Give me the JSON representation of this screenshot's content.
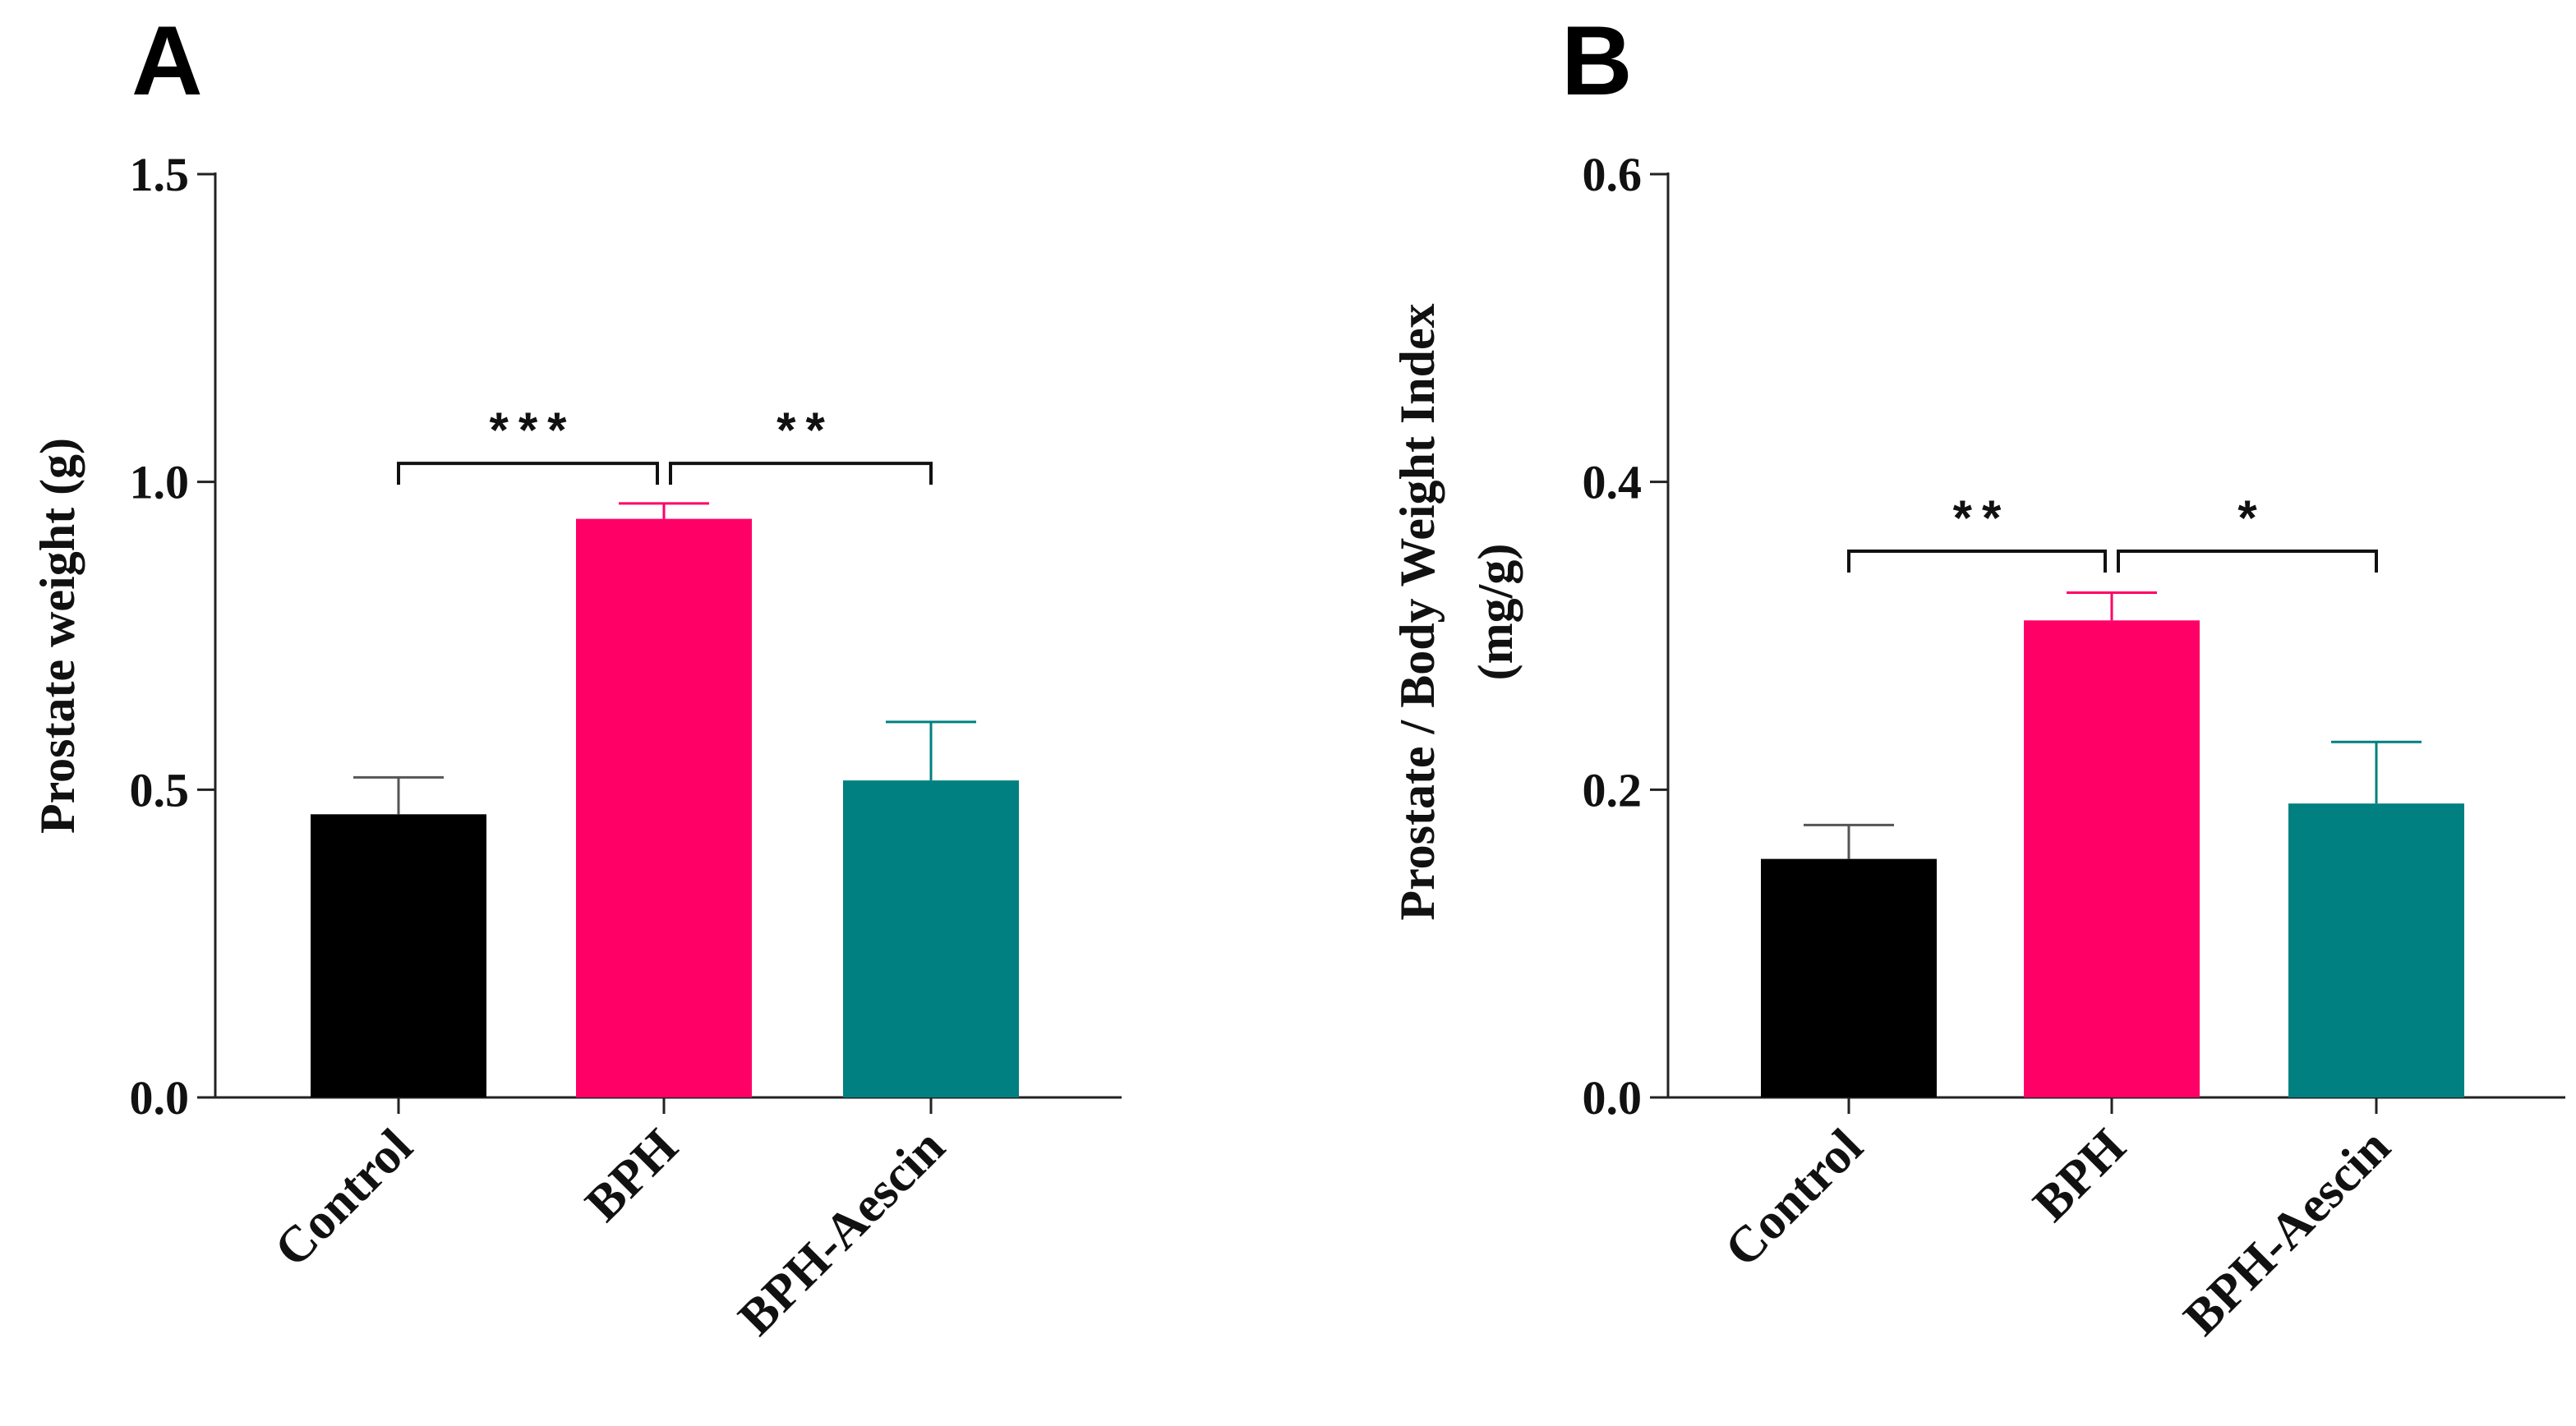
{
  "chart_data": [
    {
      "type": "bar",
      "panel": "A",
      "categories": [
        "Control",
        "BPH",
        "BPH-Aescin"
      ],
      "values": [
        0.46,
        0.94,
        0.515
      ],
      "errors": [
        0.06,
        0.025,
        0.095
      ],
      "colors": [
        "#000000",
        "#ff0066",
        "#008080"
      ],
      "title": "",
      "xlabel": "",
      "ylabel": "Prostate weight  (g)",
      "ylim": [
        0,
        1.5
      ],
      "yticks": [
        "0.0",
        "0.5",
        "1.0",
        "1.5"
      ],
      "grid": false,
      "significance": [
        {
          "from": 0,
          "to": 1,
          "label": "***",
          "level": 1.03
        },
        {
          "from": 1,
          "to": 2,
          "label": "**",
          "level": 1.03
        }
      ]
    },
    {
      "type": "bar",
      "panel": "B",
      "categories": [
        "Control",
        "BPH",
        "BPH-Aescin"
      ],
      "values": [
        0.155,
        0.31,
        0.191
      ],
      "errors": [
        0.022,
        0.018,
        0.04
      ],
      "colors": [
        "#000000",
        "#ff0066",
        "#008080"
      ],
      "title": "",
      "xlabel": "",
      "ylabel": "Prostate / Body Weight Index",
      "ylabel2": "(mg/g)",
      "ylim": [
        0,
        0.6
      ],
      "yticks": [
        "0.0",
        "0.2",
        "0.4",
        "0.6"
      ],
      "grid": false,
      "significance": [
        {
          "from": 0,
          "to": 1,
          "label": "**",
          "level": 0.355
        },
        {
          "from": 1,
          "to": 2,
          "label": "*",
          "level": 0.355
        }
      ]
    }
  ]
}
